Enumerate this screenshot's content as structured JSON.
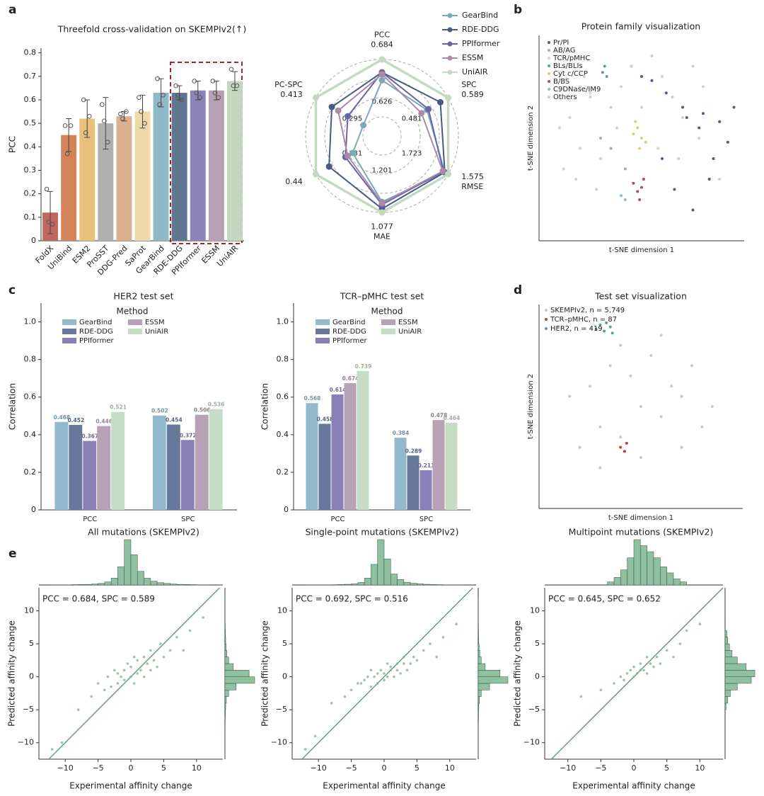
{
  "panel_labels": [
    "a",
    "b",
    "c",
    "d",
    "e"
  ],
  "chart_data": [
    {
      "type": "bar",
      "title": "Threefold cross-validation on SKEMPIv2(↑)",
      "y_label": "PCC",
      "categories": [
        "FoldX",
        "UniBind",
        "ESM2",
        "ProSST",
        "DDG-Pred",
        "SaProt",
        "GearBind",
        "RDE-DDG",
        "PPIformer",
        "ESSM",
        "UniAIR"
      ],
      "values": [
        0.12,
        0.45,
        0.52,
        0.5,
        0.53,
        0.55,
        0.63,
        0.63,
        0.64,
        0.64,
        0.68
      ],
      "errors": [
        0.09,
        0.07,
        0.08,
        0.11,
        0.02,
        0.07,
        0.06,
        0.03,
        0.04,
        0.04,
        0.04
      ],
      "points": [
        [
          0.22,
          0.07,
          0.08
        ],
        [
          0.49,
          0.49,
          0.37
        ],
        [
          0.6,
          0.53,
          0.46
        ],
        [
          0.58,
          0.42,
          0.51
        ],
        [
          0.54,
          0.55,
          0.52
        ],
        [
          0.61,
          0.5,
          0.55
        ],
        [
          0.69,
          0.62,
          0.58
        ],
        [
          0.66,
          0.6,
          0.62
        ],
        [
          0.68,
          0.61,
          0.63
        ],
        [
          0.68,
          0.61,
          0.63
        ],
        [
          0.73,
          0.66,
          0.66
        ]
      ],
      "colors": [
        "#c0675f",
        "#d4845a",
        "#e8c07a",
        "#b0b0b0",
        "#dcb08e",
        "#f0d9a8",
        "#8fb8c8",
        "#5f7590",
        "#8c83b8",
        "#b8a0b5",
        "#c2d9c0"
      ],
      "ylim": [
        0,
        0.82
      ],
      "yticks": [
        0,
        0.1,
        0.2,
        0.3,
        0.4,
        0.5,
        0.6,
        0.7,
        0.8
      ]
    },
    {
      "type": "radar",
      "axes": [
        {
          "name": "PCC",
          "outer": 0.684,
          "inner": 0.626
        },
        {
          "name": "SPC",
          "outer": 0.589,
          "inner": 0.481
        },
        {
          "name": "RMSE",
          "outer": 1.575,
          "inner": 1.723
        },
        {
          "name": "MAE",
          "outer": 1.077,
          "inner": 1.201
        },
        {
          "name": null,
          "outer": 0.44,
          "inner": 0.331
        },
        {
          "name": "PC-SPC",
          "outer": 0.413,
          "inner": 0.295
        }
      ],
      "series": [
        {
          "name": "GearBind",
          "color": "#7aaab8",
          "values": [
            0.663,
            0.543,
            1.585,
            1.1,
            0.359,
            0.3
          ]
        },
        {
          "name": "RDE-DDG",
          "color": "#4a5a80",
          "values": [
            0.671,
            0.572,
            1.585,
            1.085,
            0.411,
            0.375
          ]
        },
        {
          "name": "PPIformer",
          "color": "#6a64a8",
          "values": [
            0.671,
            0.546,
            1.589,
            1.094,
            0.375,
            0.337
          ]
        },
        {
          "name": "ESSM",
          "color": "#a98aa8",
          "values": [
            0.669,
            0.531,
            1.591,
            1.097,
            0.37,
            0.36
          ]
        },
        {
          "name": "UniAIR",
          "color": "#c5d8c4",
          "values": [
            0.684,
            0.589,
            1.575,
            1.077,
            0.44,
            0.413
          ]
        }
      ]
    },
    {
      "type": "scatter",
      "title": "Protein family visualization",
      "x_label": "t-SNE dimension 1",
      "y_label": "t-SNE dimension 2",
      "xlim": [
        0,
        100
      ],
      "ylim": [
        0,
        100
      ],
      "series": [
        {
          "name": "Pr/PI",
          "color": "#4e5891",
          "x": [
            45,
            50,
            55,
            62,
            70,
            72,
            78,
            80,
            85,
            88,
            92,
            95,
            60,
            66,
            75,
            83
          ],
          "y": [
            85,
            80,
            78,
            72,
            65,
            60,
            55,
            62,
            40,
            58,
            48,
            65,
            40,
            25,
            15,
            30
          ]
        },
        {
          "name": "AB/AG",
          "color": "#a8a8b4",
          "x": [
            30,
            35,
            42
          ],
          "y": [
            50,
            45,
            35
          ]
        },
        {
          "name": "TCR/pMHC",
          "color": "#d8d8d8",
          "x": [
            20,
            25
          ],
          "y": [
            75,
            72
          ]
        },
        {
          "name": "BLs/BLIs",
          "color": "#5f9f9c",
          "x": [
            31,
            32,
            33
          ],
          "y": [
            82,
            85,
            80
          ]
        },
        {
          "name": "Cyt c/CCP",
          "color": "#e2cc72",
          "x": [
            46,
            48,
            50,
            52,
            49,
            47
          ],
          "y": [
            52,
            55,
            50,
            48,
            45,
            58
          ]
        },
        {
          "name": "B/BS",
          "color": "#b44c4c",
          "x": [
            46,
            48,
            50,
            49,
            51
          ],
          "y": [
            28,
            24,
            26,
            20,
            30
          ]
        },
        {
          "name": "C9DNase/IM9",
          "color": "#90b8c8",
          "x": [
            40,
            42
          ],
          "y": [
            22,
            20
          ]
        },
        {
          "name": "Others",
          "color": "#cfcfcf",
          "x": [
            10,
            15,
            20,
            25,
            30,
            35,
            40,
            45,
            55,
            60,
            65,
            70,
            75,
            80,
            12,
            18,
            28,
            38,
            50,
            58,
            68,
            78,
            88,
            22
          ],
          "y": [
            55,
            60,
            45,
            70,
            40,
            65,
            75,
            85,
            90,
            80,
            70,
            60,
            85,
            75,
            35,
            30,
            25,
            55,
            65,
            45,
            40,
            50,
            30,
            80
          ]
        }
      ]
    },
    {
      "type": "grouped_bar",
      "title": "HER2 test set",
      "y_label": "Correlation",
      "legend_title": "Method",
      "categories": [
        "PCC",
        "SPC"
      ],
      "series": [
        {
          "name": "GearBind",
          "color": "#92b9cc",
          "values": [
            0.468,
            0.502
          ]
        },
        {
          "name": "RDE-DDG",
          "color": "#66799a",
          "values": [
            0.452,
            0.454
          ]
        },
        {
          "name": "PPIformer",
          "color": "#8a80b8",
          "values": [
            0.367,
            0.372
          ]
        },
        {
          "name": "ESSM",
          "color": "#b7a1b4",
          "values": [
            0.446,
            0.506
          ]
        },
        {
          "name": "UniAIR",
          "color": "#c5dcc5",
          "values": [
            0.521,
            0.536
          ]
        }
      ],
      "ylim": [
        0,
        1.1
      ],
      "yticks": [
        0,
        0.2,
        0.4,
        0.6,
        0.8,
        {
          "value": 1,
          "label": "1.0"
        }
      ]
    },
    {
      "type": "grouped_bar",
      "title": "TCR–pMHC test set",
      "y_label": "Correlation",
      "legend_title": "Method",
      "categories": [
        "PCC",
        "SPC"
      ],
      "series": [
        {
          "name": "GearBind",
          "color": "#92b9cc",
          "values": [
            0.568,
            0.384
          ]
        },
        {
          "name": "RDE-DDG",
          "color": "#66799a",
          "values": [
            0.458,
            0.289
          ]
        },
        {
          "name": "PPIformer",
          "color": "#8a80b8",
          "values": [
            0.614,
            0.211
          ]
        },
        {
          "name": "ESSM",
          "color": "#b7a1b4",
          "values": [
            0.674,
            0.478
          ]
        },
        {
          "name": "UniAIR",
          "color": "#c5dcc5",
          "values": [
            0.739,
            0.464
          ]
        }
      ],
      "ylim": [
        0,
        1.1
      ],
      "yticks": [
        0,
        0.2,
        0.4,
        0.6,
        0.8,
        {
          "value": 1,
          "label": "1.0"
        }
      ]
    },
    {
      "type": "scatter",
      "title": "Test set visualization",
      "x_label": "t-SNE dimension 1",
      "y_label": "t-SNE dimension 2",
      "xlim": [
        0,
        100
      ],
      "ylim": [
        0,
        100
      ],
      "series": [
        {
          "name": "SKEMPIv2, n = 5,749",
          "color": "#c8c8c8",
          "x": [
            20,
            30,
            40,
            50,
            60,
            70,
            80,
            25,
            35,
            45,
            55,
            65,
            75,
            85,
            30,
            50,
            70,
            40,
            60,
            15
          ],
          "y": [
            30,
            40,
            35,
            50,
            45,
            55,
            40,
            60,
            70,
            65,
            75,
            60,
            70,
            50,
            20,
            25,
            30,
            80,
            85,
            55
          ]
        },
        {
          "name": "TCR–pMHC, n = 87",
          "color": "#c04040",
          "x": [
            40,
            42,
            43
          ],
          "y": [
            30,
            28,
            32
          ]
        },
        {
          "name": "HER2, n = 419",
          "color": "#5aa090",
          "x": [
            28,
            30,
            32,
            33,
            35,
            36
          ],
          "y": [
            88,
            90,
            87,
            91,
            89,
            86
          ]
        }
      ]
    },
    {
      "type": "scatter_hist",
      "title": "All mutations (SKEMPIv2)",
      "annotation": "PCC = 0.684, SPC = 0.589",
      "x_label": "Experimental affinity change",
      "y_label": "Predicted affinity change",
      "color": "#7fb894",
      "x": [
        -12,
        -10.5,
        -8,
        -6,
        -5,
        -4,
        -3.5,
        -3,
        -2.5,
        -2,
        -2,
        -1.5,
        -1,
        -1,
        -0.5,
        0,
        0,
        0.5,
        0.5,
        1,
        1,
        1.5,
        2,
        2,
        2.5,
        3,
        3,
        3.5,
        4,
        4.5,
        5,
        6,
        7,
        8,
        9,
        11
      ],
      "y": [
        -11,
        -10,
        -5,
        -3,
        -1,
        -2,
        0,
        -1.5,
        1,
        -1,
        0.5,
        0,
        1,
        -0.5,
        2,
        0,
        1.5,
        -1,
        3,
        0.5,
        2.5,
        1,
        0,
        3,
        2,
        1,
        4,
        2.5,
        1.5,
        5,
        3,
        4,
        6,
        4,
        7,
        9
      ],
      "x_hist": {
        "bins": [
          -12,
          -11,
          -10,
          -9,
          -8,
          -7,
          -6,
          -5,
          -4,
          -3,
          -2,
          -1,
          0,
          1,
          2,
          3,
          4,
          5,
          6,
          7,
          8,
          9,
          10,
          11,
          12
        ],
        "counts": [
          1,
          1,
          1,
          2,
          3,
          4,
          6,
          10,
          20,
          45,
          120,
          300,
          200,
          90,
          45,
          25,
          15,
          10,
          6,
          4,
          3,
          2,
          1,
          1
        ]
      },
      "y_hist": {
        "bins": [
          -12,
          -11,
          -10,
          -9,
          -8,
          -7,
          -6,
          -5,
          -4,
          -3,
          -2,
          -1,
          0,
          1,
          2,
          3,
          4,
          5,
          6,
          7,
          8,
          9,
          10,
          11,
          12
        ],
        "counts": [
          1,
          1,
          1,
          2,
          2,
          3,
          5,
          8,
          15,
          40,
          120,
          320,
          260,
          90,
          40,
          20,
          12,
          8,
          5,
          3,
          2,
          1,
          1,
          1
        ]
      },
      "xlim": [
        -14,
        14
      ],
      "ylim": [
        -12.5,
        13.5
      ],
      "xticks": [
        {
          "value": -10,
          "label": "−10"
        },
        {
          "value": -5,
          "label": "−5"
        },
        0,
        5,
        10
      ],
      "yticks": [
        {
          "value": -10,
          "label": "−10"
        },
        {
          "value": -5,
          "label": "−5"
        },
        0,
        5,
        10
      ]
    },
    {
      "type": "scatter_hist",
      "title": "Single-point mutations (SKEMPIv2)",
      "annotation": "PCC = 0.692, SPC = 0.516",
      "x_label": "Experimental affinity change",
      "y_label": "Predicted affinity change",
      "color": "#7fb894",
      "x": [
        -12,
        -10.5,
        -8,
        -6,
        -5,
        -4,
        -3.5,
        -3,
        -2.5,
        -2,
        -2,
        -1.5,
        -1,
        -1,
        -0.5,
        0,
        0,
        0.5,
        0.5,
        1,
        1,
        1.5,
        2,
        2,
        2.5,
        3,
        3,
        3.5,
        4,
        4.5,
        5,
        6,
        7,
        8,
        9,
        11
      ],
      "y": [
        -11,
        -9,
        -4,
        -3,
        -2,
        -1,
        -1,
        -0.5,
        0,
        -1.5,
        1,
        0,
        0.5,
        -1,
        1,
        0.5,
        -0.5,
        0,
        2,
        1,
        1.5,
        0,
        2,
        1,
        0.5,
        2,
        3,
        1,
        2,
        3,
        2.5,
        4,
        5,
        3,
        6,
        8
      ],
      "x_hist": {
        "bins": [
          -12,
          -11,
          -10,
          -9,
          -8,
          -7,
          -6,
          -5,
          -4,
          -3,
          -2,
          -1,
          0,
          1,
          2,
          3,
          4,
          5,
          6,
          7,
          8,
          9,
          10,
          11,
          12
        ],
        "counts": [
          1,
          1,
          1,
          1,
          2,
          3,
          5,
          8,
          18,
          50,
          150,
          330,
          190,
          80,
          40,
          20,
          12,
          8,
          5,
          3,
          2,
          1,
          1,
          1
        ]
      },
      "y_hist": {
        "bins": [
          -12,
          -11,
          -10,
          -9,
          -8,
          -7,
          -6,
          -5,
          -4,
          -3,
          -2,
          -1,
          0,
          1,
          2,
          3,
          4,
          5,
          6,
          7,
          8,
          9,
          10,
          11,
          12
        ],
        "counts": [
          1,
          1,
          1,
          1,
          2,
          3,
          4,
          7,
          14,
          35,
          130,
          340,
          250,
          80,
          35,
          18,
          10,
          6,
          4,
          3,
          2,
          1,
          1,
          1
        ]
      },
      "xlim": [
        -14,
        14
      ],
      "ylim": [
        -12.5,
        13.5
      ],
      "xticks": [
        {
          "value": -10,
          "label": "−10"
        },
        {
          "value": -5,
          "label": "−5"
        },
        0,
        5,
        10
      ],
      "yticks": [
        {
          "value": -10,
          "label": "−10"
        },
        {
          "value": -5,
          "label": "−5"
        },
        0,
        5,
        10
      ]
    },
    {
      "type": "scatter_hist",
      "title": "Multipoint mutations (SKEMPIv2)",
      "annotation": "PCC = 0.645, SPC = 0.652",
      "x_label": "Experimental affinity change",
      "y_label": "Predicted affinity change",
      "color": "#7fb894",
      "x": [
        -8,
        -5,
        -3,
        -2,
        -1.5,
        -1,
        -0.5,
        0,
        0,
        0.5,
        1,
        1,
        1.5,
        2,
        2,
        2.5,
        3,
        3.5,
        4,
        5,
        6,
        7,
        8,
        10
      ],
      "y": [
        -3,
        -2,
        -1,
        0,
        -0.5,
        0.5,
        1,
        0,
        1.5,
        0.5,
        1,
        2,
        1,
        0.5,
        3,
        2,
        1.5,
        3,
        2,
        4,
        3,
        5,
        7,
        8
      ],
      "x_hist": {
        "bins": [
          -4,
          -3,
          -2,
          -1,
          0,
          1,
          2,
          3,
          4,
          5,
          6,
          7,
          8
        ],
        "counts": [
          2,
          5,
          10,
          18,
          30,
          26,
          22,
          18,
          12,
          8,
          4,
          2
        ]
      },
      "y_hist": {
        "bins": [
          -5,
          -4,
          -3,
          -2,
          -1,
          0,
          1,
          2,
          3,
          4,
          5,
          6,
          7
        ],
        "counts": [
          1,
          3,
          6,
          14,
          30,
          34,
          24,
          14,
          8,
          5,
          3,
          2
        ]
      },
      "xlim": [
        -13.5,
        13.5
      ],
      "ylim": [
        -12.5,
        13.5
      ],
      "xticks": [
        {
          "value": -10,
          "label": "−10"
        },
        {
          "value": -5,
          "label": "−5"
        },
        0,
        5,
        10
      ],
      "yticks": [
        {
          "value": -10,
          "label": "−10"
        },
        {
          "value": -5,
          "label": "−5"
        },
        0,
        5,
        10
      ]
    }
  ]
}
